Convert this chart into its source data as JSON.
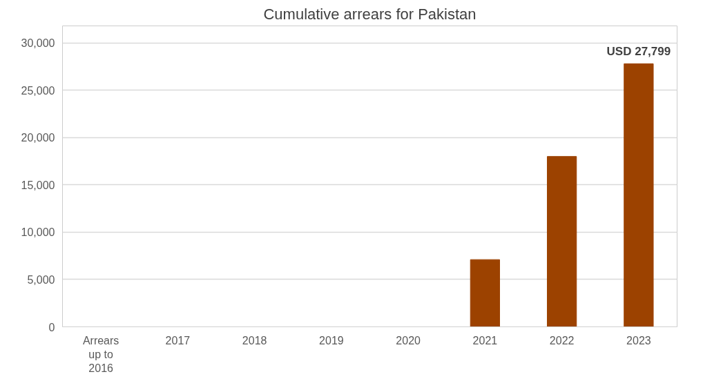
{
  "chart_data": {
    "type": "bar",
    "title": "Cumulative arrears for Pakistan",
    "categories": [
      "Arrears up to 2016",
      "2017",
      "2018",
      "2019",
      "2020",
      "2021",
      "2022",
      "2023"
    ],
    "values": [
      0,
      0,
      0,
      0,
      0,
      7100,
      18000,
      27799
    ],
    "color": "#9c4200",
    "value_labels": [
      null,
      null,
      null,
      null,
      null,
      null,
      null,
      "USD 27,799"
    ],
    "ylim": [
      0,
      30000
    ],
    "yticks": [
      {
        "value": 0,
        "label": "0"
      },
      {
        "value": 5000,
        "label": "5,000"
      },
      {
        "value": 10000,
        "label": "10,000"
      },
      {
        "value": 15000,
        "label": "15,000"
      },
      {
        "value": 20000,
        "label": "20,000"
      },
      {
        "value": 25000,
        "label": "25,000"
      },
      {
        "value": 30000,
        "label": "30,000"
      }
    ],
    "grid": "y"
  }
}
